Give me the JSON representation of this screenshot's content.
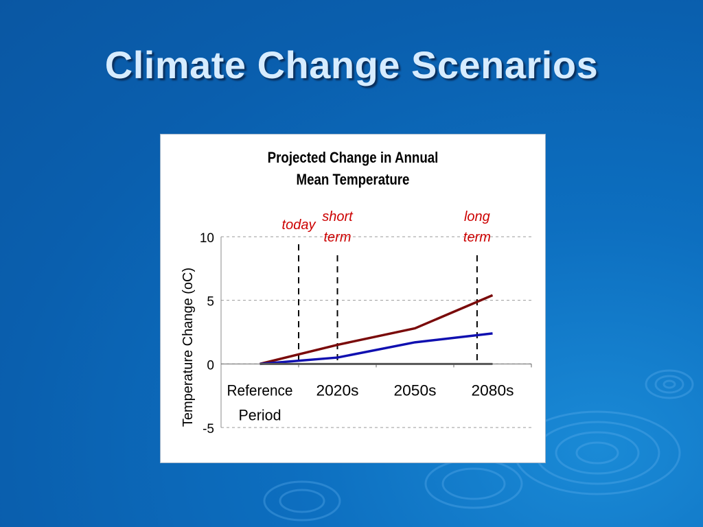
{
  "slide": {
    "title": "Climate Change Scenarios"
  },
  "colors": {
    "background": "#0a5fae",
    "title_text": "#d7ecff",
    "annotation": "#cc0000",
    "series_high": "#7a0a0a",
    "series_mid": "#1010b0",
    "series_base": "#555555"
  },
  "chart_data": {
    "type": "line",
    "title_lines": [
      "Projected Change in Annual",
      "Mean Temperature"
    ],
    "ylabel": "Temperature Change (oC)",
    "xlabel": "",
    "categories": [
      "Reference Period",
      "2020s",
      "2050s",
      "2080s"
    ],
    "category_lines": [
      [
        "Reference",
        "Period"
      ],
      [
        "2020s"
      ],
      [
        "2050s"
      ],
      [
        "2080s"
      ]
    ],
    "ylim": [
      -5,
      10
    ],
    "yticks": [
      10,
      5,
      0,
      -5
    ],
    "grid": true,
    "series": [
      {
        "color": "#7a0a0a",
        "values": [
          0,
          1.5,
          2.8,
          5.4
        ]
      },
      {
        "color": "#1010b0",
        "values": [
          0,
          0.5,
          1.7,
          2.4
        ]
      },
      {
        "color": "#555555",
        "values": [
          0,
          0,
          0,
          0
        ]
      }
    ],
    "annotations": [
      {
        "lines": [
          "today"
        ],
        "x": 0.5
      },
      {
        "lines": [
          "short",
          "term"
        ],
        "x": 1.0
      },
      {
        "lines": [
          "long",
          "term"
        ],
        "x": 2.8
      }
    ]
  }
}
